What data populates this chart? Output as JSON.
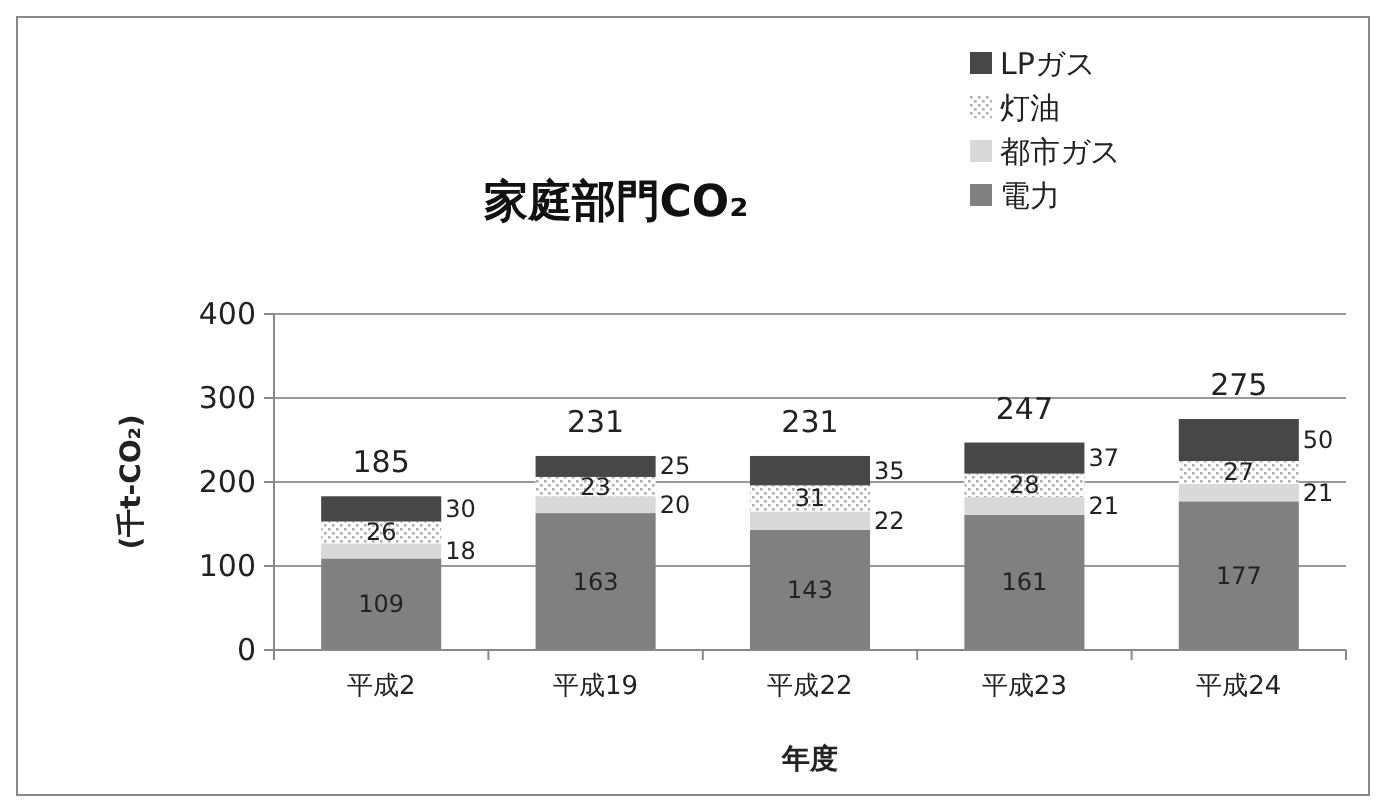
{
  "chart_data": {
    "type": "bar",
    "stacked": true,
    "title": "家庭部門CO₂",
    "ylabel": "(千t-CO₂)",
    "xlabel": "年度",
    "categories": [
      "平成2",
      "平成19",
      "平成22",
      "平成23",
      "平成24"
    ],
    "series": [
      {
        "name": "電力",
        "color": "#808080",
        "values": [
          109,
          163,
          143,
          161,
          177
        ]
      },
      {
        "name": "都市ガス",
        "color": "#d9d9d9",
        "values": [
          18,
          20,
          22,
          21,
          21
        ]
      },
      {
        "name": "灯油",
        "color": "#b0b0b0",
        "values": [
          26,
          23,
          31,
          28,
          27
        ]
      },
      {
        "name": "LPガス",
        "color": "#474747",
        "values": [
          30,
          25,
          35,
          37,
          50
        ]
      }
    ],
    "totals": [
      "185",
      "231",
      "231",
      "247",
      "275"
    ],
    "ylim": [
      0,
      400
    ],
    "yticks": [
      0,
      100,
      200,
      300,
      400
    ],
    "grid": "y",
    "legend": "top right",
    "data_labels": true
  }
}
